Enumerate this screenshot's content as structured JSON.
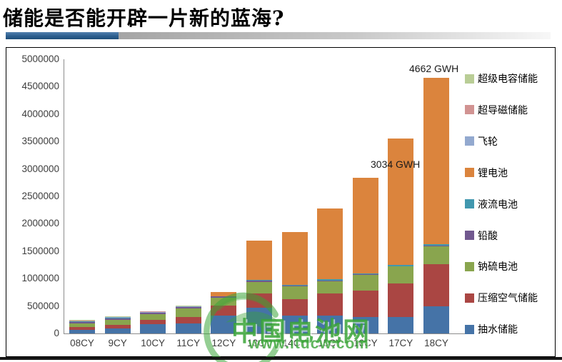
{
  "slide": {
    "title": "储能是否能开辟一片新的蓝海?"
  },
  "watermark": {
    "name": "中国电池网",
    "url": "www.itdcw.com",
    "color": "#3aa437"
  },
  "chart_data": {
    "type": "bar",
    "stacked": true,
    "grid": false,
    "legend_position": "right",
    "ylim": [
      0,
      5000000
    ],
    "ytick_step": 500000,
    "categories": [
      "08CY",
      "9CY",
      "10CY",
      "11CY",
      "12CY",
      "13CY",
      "14CY",
      "15CY",
      "16CY",
      "17CY",
      "18CY"
    ],
    "series": [
      {
        "name": "抽水储能",
        "color": "#4573A7",
        "values": [
          70000,
          91000,
          170000,
          180000,
          330000,
          466000,
          326000,
          326000,
          304000,
          304000,
          500000
        ]
      },
      {
        "name": "压缩空气储能",
        "color": "#AA4643",
        "values": [
          52000,
          61000,
          78000,
          118000,
          174000,
          261000,
          304000,
          400000,
          479000,
          610000,
          765000
        ]
      },
      {
        "name": "钠硫电池",
        "color": "#89A54E",
        "values": [
          65000,
          99000,
          105000,
          160000,
          144000,
          217000,
          231000,
          230000,
          283000,
          304000,
          330000
        ]
      },
      {
        "name": "铅酸",
        "color": "#71588F",
        "values": [
          26000,
          28000,
          25000,
          22000,
          28000,
          20000,
          18000,
          12000,
          12000,
          12000,
          10000
        ]
      },
      {
        "name": "液流电池",
        "color": "#4198AF",
        "values": [
          5000,
          5000,
          6000,
          6000,
          6000,
          8000,
          12000,
          18000,
          20000,
          24000,
          23000
        ]
      },
      {
        "name": "锂电池",
        "color": "#DB843D",
        "values": [
          0,
          0,
          0,
          0,
          78000,
          718000,
          962000,
          1296000,
          1736000,
          2302000,
          3034000
        ]
      },
      {
        "name": "飞轮",
        "color": "#93A9CF",
        "values": [
          10000,
          10000,
          10000,
          8000,
          0,
          0,
          0,
          0,
          0,
          0,
          0
        ]
      },
      {
        "name": "超导磁储能",
        "color": "#D19392",
        "values": [
          5000,
          5000,
          5000,
          4000,
          0,
          0,
          0,
          0,
          0,
          0,
          0
        ]
      },
      {
        "name": "超级电容储能",
        "color": "#B9CD96",
        "values": [
          10000,
          10000,
          10000,
          8000,
          0,
          0,
          0,
          0,
          0,
          0,
          0
        ]
      }
    ],
    "legend_top_to_bottom": [
      "超级电容储能",
      "超导磁储能",
      "飞轮",
      "锂电池",
      "液流电池",
      "铅酸",
      "钠硫电池",
      "压缩空气储能",
      "抽水储能"
    ],
    "annotations": [
      {
        "text": "4662 GWH",
        "category": "18CY",
        "placement": "above-bar"
      },
      {
        "text": "3034 GWH",
        "category": "18CY",
        "placement": "left-of-bar",
        "at_value": 3080000
      }
    ]
  }
}
